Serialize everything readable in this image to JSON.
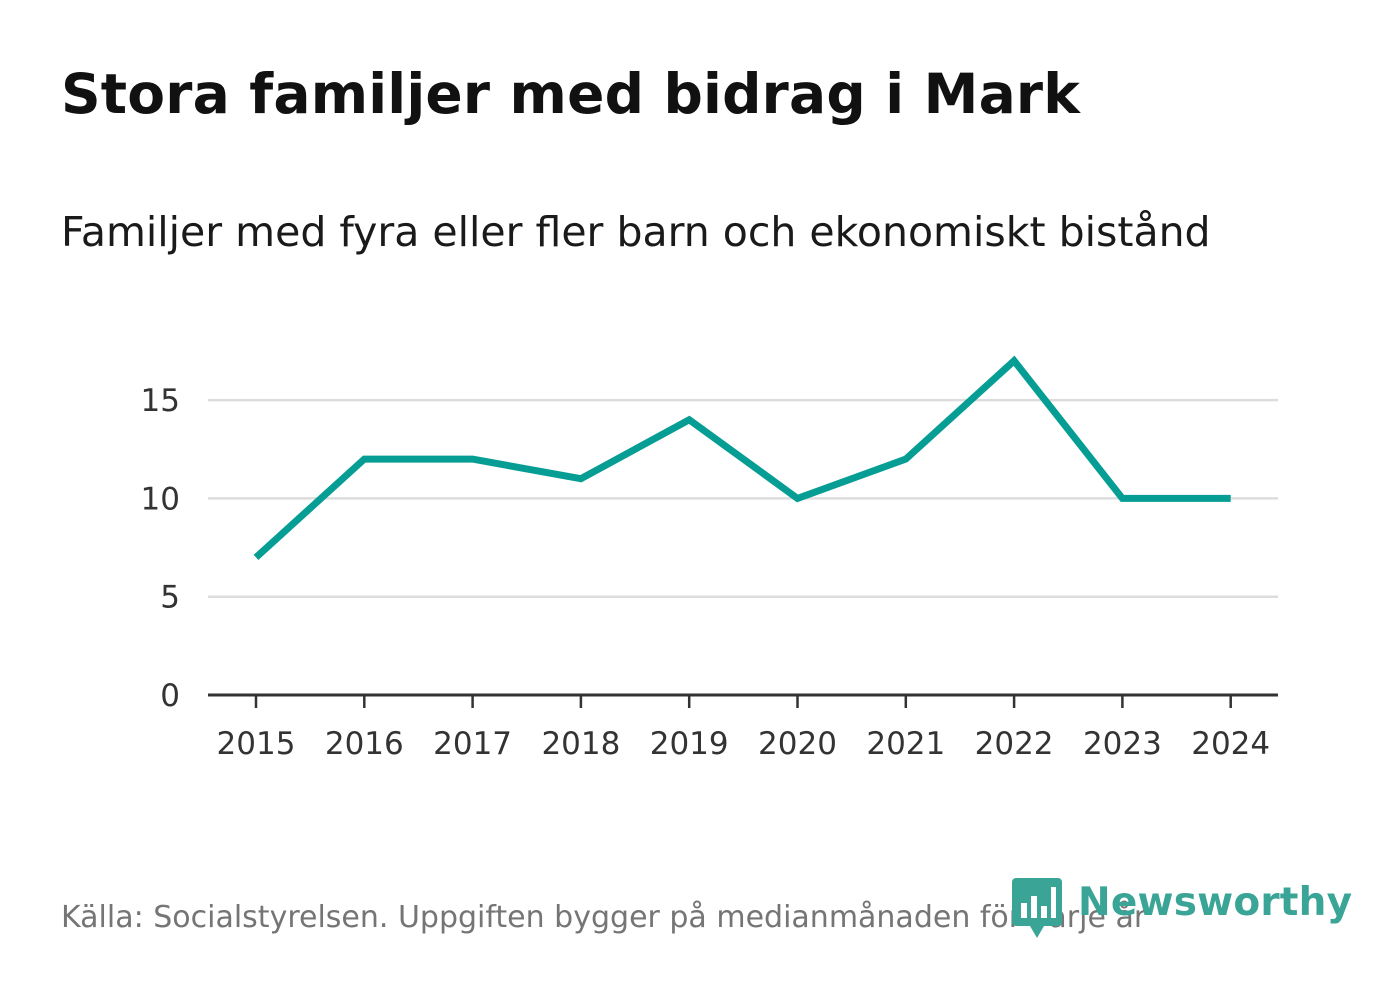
{
  "header": {
    "title": "Stora familjer med bidrag i Mark",
    "subtitle": "Familjer med fyra eller fler barn och ekonomiskt bistånd"
  },
  "footer": {
    "source": "Källa: Socialstyrelsen. Uppgiften bygger på medianmånaden för varje år",
    "logo_text": "Newsworthy",
    "logo_icon": "newsworthy-logo-icon"
  },
  "colors": {
    "line": "#069e94",
    "grid": "#dddddd",
    "axis": "#333333",
    "logo": "#3aa596"
  },
  "chart_data": {
    "type": "line",
    "title": "Stora familjer med bidrag i Mark",
    "subtitle": "Familjer med fyra eller fler barn och ekonomiskt bistånd",
    "categories": [
      "2015",
      "2016",
      "2017",
      "2018",
      "2019",
      "2020",
      "2021",
      "2022",
      "2023",
      "2024"
    ],
    "series": [
      {
        "values": [
          7,
          12,
          12,
          11,
          14,
          10,
          12,
          17,
          10,
          10
        ]
      }
    ],
    "yticks": [
      0,
      5,
      10,
      15
    ],
    "ylim": [
      0,
      17
    ],
    "grid": true,
    "legend": "none"
  }
}
